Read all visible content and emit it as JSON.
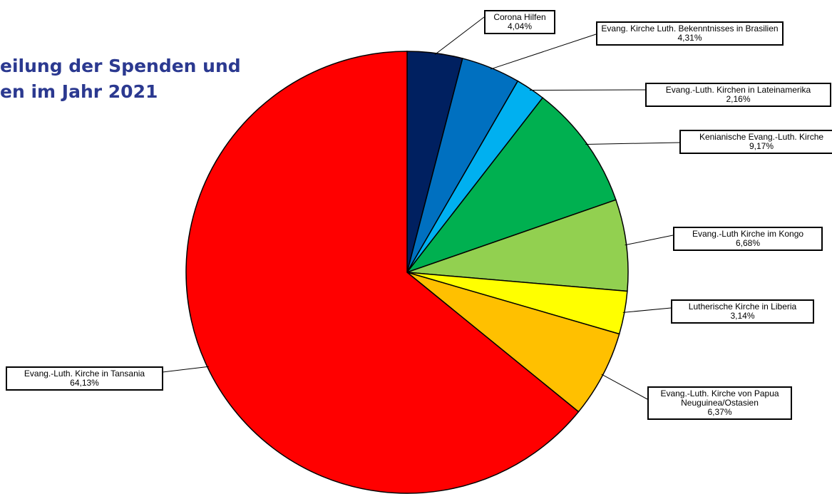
{
  "chart_data": {
    "type": "pie",
    "title": [
      "eilung der Spenden und",
      "en im Jahr 2021"
    ],
    "categories": [
      "Corona Hilfen",
      "Evang. Kirche Luth. Bekenntnisses in Brasilien",
      "Evang.-Luth. Kirchen in Lateinamerika",
      "Kenianische Evang.-Luth. Kirche",
      "Evang.-Luth Kirche im Kongo",
      "Lutherische Kirche in Liberia",
      "Evang.-Luth. Kirche von Papua Neuguinea/Ostasien",
      "Evang.-Luth. Kirche in Tansania"
    ],
    "values": [
      4.04,
      4.31,
      2.16,
      9.17,
      6.68,
      3.14,
      6.37,
      64.13
    ],
    "value_labels": [
      "4,04%",
      "4,31%",
      "2,16%",
      "9,17%",
      "6,68%",
      "3,14%",
      "6,37%",
      "64,13%"
    ],
    "colors": [
      "#002060",
      "#0070c0",
      "#00b0f0",
      "#00b050",
      "#92d050",
      "#ffff00",
      "#ffc000",
      "#ff0000"
    ]
  }
}
